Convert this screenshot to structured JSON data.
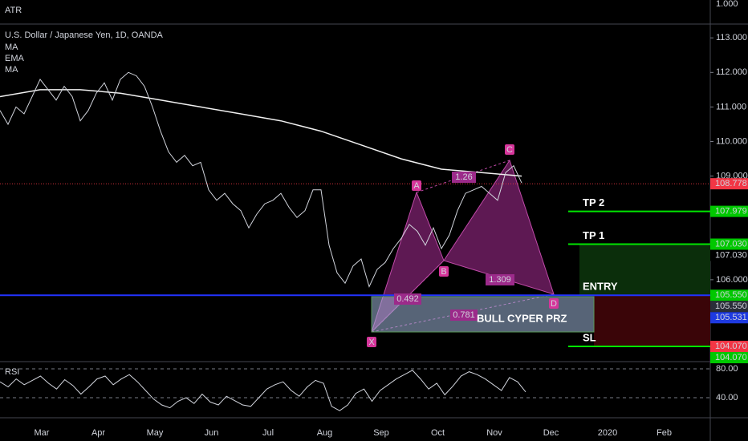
{
  "header": {
    "atr_label": "ATR",
    "symbol": "U.S. Dollar / Japanese Yen, 1D, OANDA",
    "indicators": [
      "MA",
      "EMA",
      "MA"
    ]
  },
  "atr_axis": {
    "ticks": [
      {
        "value": 1,
        "label": "1.000"
      }
    ]
  },
  "price_axis": {
    "ylim": [
      103.63,
      113.4
    ],
    "ticks": [
      {
        "value": 113,
        "label": "113.000"
      },
      {
        "value": 112,
        "label": "112.000"
      },
      {
        "value": 111,
        "label": "111.000"
      },
      {
        "value": 110,
        "label": "110.000"
      },
      {
        "value": 109,
        "label": "109.000"
      },
      {
        "value": 106,
        "label": "106.000"
      }
    ]
  },
  "price_markers": [
    {
      "value": 108.778,
      "label": "108.778",
      "color": "#f23645"
    },
    {
      "value": 107.979,
      "label": "107.979",
      "color": "#00c800"
    },
    {
      "value": 107.03,
      "label": "107.030",
      "color": "#00c800"
    },
    {
      "value": 107.03,
      "label": "107.030",
      "color": "#000000"
    },
    {
      "value": 105.55,
      "label": "105.550",
      "color": "#00c800"
    },
    {
      "value": 105.55,
      "label": "105.550",
      "color": "#2a2e39"
    },
    {
      "value": 105.531,
      "label": "105.531",
      "color": "#1e3ae0"
    },
    {
      "value": 104.07,
      "label": "104.070",
      "color": "#f23645"
    },
    {
      "value": 104.07,
      "label": "104.070",
      "color": "#00c800"
    }
  ],
  "levels": [
    {
      "name": "TP 2",
      "value": 107.979,
      "color": "#00e600"
    },
    {
      "name": "TP 1",
      "value": 107.03,
      "color": "#00e600"
    },
    {
      "name": "ENTRY",
      "value": 105.55,
      "color": "#2233ff"
    },
    {
      "name": "SL",
      "value": 104.07,
      "color": "#00e600"
    }
  ],
  "pattern": {
    "title": "BULL CYPER PRZ",
    "points": [
      "X",
      "A",
      "B",
      "C",
      "D"
    ],
    "ratios": [
      "0.492",
      "1.26",
      "1.309",
      "0.781"
    ]
  },
  "price_series": {
    "color": "#d1d4dc",
    "values": [
      110.9,
      110.5,
      111.0,
      110.8,
      111.3,
      111.8,
      111.5,
      111.2,
      111.6,
      111.3,
      110.6,
      110.9,
      111.4,
      111.7,
      111.2,
      111.8,
      112.0,
      111.9,
      111.6,
      111.0,
      110.3,
      109.7,
      109.4,
      109.6,
      109.3,
      109.4,
      108.6,
      108.3,
      108.5,
      108.2,
      108.0,
      107.5,
      107.9,
      108.2,
      108.3,
      108.5,
      108.1,
      107.8,
      108.0,
      108.6,
      108.6,
      107.0,
      106.2,
      105.9,
      106.4,
      106.6,
      105.8,
      106.3,
      106.5,
      106.9,
      107.2,
      107.6,
      107.4,
      107.0,
      107.5,
      106.9,
      107.3,
      108.0,
      108.5,
      108.6,
      108.7,
      108.5,
      108.3,
      109.1,
      109.3,
      108.8
    ]
  },
  "ma_series": {
    "color": "#f0f0f0",
    "values": [
      111.3,
      111.5,
      111.5,
      111.4,
      111.2,
      111.0,
      110.8,
      110.6,
      110.3,
      109.9,
      109.5,
      109.2,
      109.1,
      109.0
    ]
  },
  "rsi": {
    "label": "RSI",
    "ylim": [
      13.3,
      88.9
    ],
    "ticks": [
      {
        "value": 80,
        "label": "80.00"
      },
      {
        "value": 40,
        "label": "40.00"
      }
    ],
    "color": "#d1d4dc",
    "values": [
      62,
      55,
      66,
      58,
      64,
      70,
      60,
      52,
      65,
      57,
      45,
      55,
      66,
      70,
      58,
      66,
      72,
      62,
      50,
      38,
      30,
      26,
      35,
      40,
      32,
      45,
      34,
      30,
      42,
      36,
      30,
      28,
      40,
      52,
      58,
      62,
      50,
      42,
      55,
      64,
      60,
      28,
      22,
      30,
      46,
      52,
      35,
      50,
      58,
      66,
      72,
      78,
      66,
      52,
      60,
      44,
      56,
      70,
      76,
      72,
      66,
      58,
      50,
      68,
      62,
      48
    ]
  },
  "time_axis": {
    "labels": [
      "Mar",
      "Apr",
      "May",
      "Jun",
      "Jul",
      "Aug",
      "Sep",
      "Oct",
      "Nov",
      "Dec",
      "2020",
      "Feb"
    ]
  }
}
